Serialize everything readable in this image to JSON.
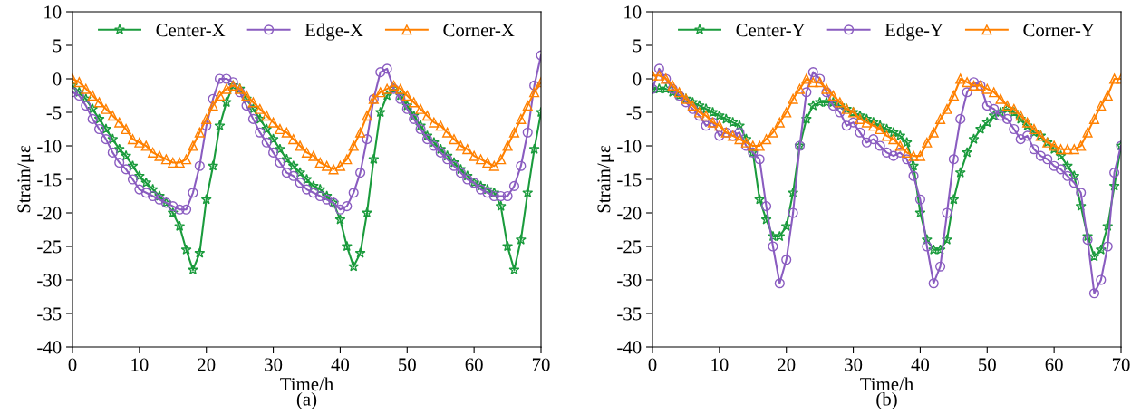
{
  "chart_data": [
    {
      "type": "line",
      "xlabel": "Time/h",
      "ylabel": "Strain/με",
      "annotations": [
        "(a)"
      ],
      "x": [
        0,
        1,
        2,
        3,
        4,
        5,
        6,
        7,
        8,
        9,
        10,
        11,
        12,
        13,
        14,
        15,
        16,
        17,
        18,
        19,
        20,
        21,
        22,
        23,
        24,
        25,
        26,
        27,
        28,
        29,
        30,
        31,
        32,
        33,
        34,
        35,
        36,
        37,
        38,
        39,
        40,
        41,
        42,
        43,
        44,
        45,
        46,
        47,
        48,
        49,
        50,
        51,
        52,
        53,
        54,
        55,
        56,
        57,
        58,
        59,
        60,
        61,
        62,
        63,
        64,
        65,
        66,
        67,
        68,
        69,
        70
      ],
      "xlim": [
        0,
        70
      ],
      "xticks": [
        0,
        10,
        20,
        30,
        40,
        50,
        60,
        70
      ],
      "ylim": [
        -40,
        10
      ],
      "yticks": [
        -40,
        -35,
        -30,
        -25,
        -20,
        -15,
        -10,
        -5,
        0,
        5,
        10
      ],
      "legend": "top",
      "grid": false,
      "line_style": "solid",
      "series": [
        {
          "name": "Center-X",
          "color": "#1a9b3c",
          "marker": "star",
          "values": [
            -1,
            -2,
            -3,
            -4.5,
            -6,
            -7.5,
            -9,
            -10.5,
            -11.5,
            -13,
            -14.5,
            -15.5,
            -16.5,
            -17.5,
            -18.5,
            -20,
            -22,
            -25.5,
            -28.5,
            -26,
            -18,
            -13,
            -7,
            -3.5,
            -1,
            -1.5,
            -3,
            -4.5,
            -6,
            -7.5,
            -9,
            -10.5,
            -12,
            -13,
            -14,
            -15,
            -16,
            -16.5,
            -17.5,
            -18.5,
            -21,
            -25,
            -28,
            -26,
            -20,
            -12,
            -5,
            -2.5,
            -1.5,
            -2.5,
            -4,
            -5.5,
            -7,
            -8.5,
            -9.5,
            -10.5,
            -11.5,
            -12.5,
            -13.5,
            -14.5,
            -15.5,
            -16,
            -16.5,
            -17,
            -19,
            -25,
            -28.5,
            -24,
            -17,
            -10.5,
            -5
          ]
        },
        {
          "name": "Edge-X",
          "color": "#8a5cc0",
          "marker": "circle",
          "values": [
            -2,
            -2.5,
            -4,
            -6,
            -7.5,
            -9,
            -11,
            -12.5,
            -13.5,
            -15,
            -16.5,
            -17,
            -17.5,
            -18,
            -18.5,
            -19,
            -19.5,
            -19.5,
            -17,
            -13,
            -7,
            -3,
            0,
            0,
            -0.5,
            -2,
            -4,
            -6,
            -8,
            -9.5,
            -11,
            -12.5,
            -14,
            -14.5,
            -15.5,
            -16.5,
            -17,
            -17.5,
            -18,
            -18.5,
            -19.5,
            -19,
            -17,
            -14,
            -9,
            -3,
            1,
            1.5,
            -1.5,
            -3,
            -4.5,
            -6,
            -7.5,
            -9,
            -10,
            -11,
            -12,
            -13,
            -14,
            -15,
            -15.5,
            -16.5,
            -17,
            -17.5,
            -17.5,
            -17.5,
            -16,
            -13,
            -8,
            -1,
            3.5
          ]
        },
        {
          "name": "Corner-X",
          "color": "#ff8000",
          "marker": "triangle",
          "values": [
            0,
            -0.5,
            -1.5,
            -2.5,
            -3.5,
            -4.5,
            -5.5,
            -6.5,
            -7.5,
            -9,
            -9.5,
            -10,
            -11,
            -11.5,
            -12,
            -12.5,
            -12.5,
            -12,
            -10,
            -8,
            -6,
            -4,
            -2.5,
            -1.5,
            -1,
            -1.5,
            -2.5,
            -3.5,
            -4.5,
            -5.5,
            -6.5,
            -7.5,
            -8,
            -9,
            -10,
            -11,
            -11.5,
            -12.5,
            -13,
            -13.5,
            -13,
            -12,
            -10,
            -8,
            -5.5,
            -3,
            -2,
            -1.5,
            -1,
            -1.5,
            -2.5,
            -3.5,
            -4.5,
            -5.5,
            -6.5,
            -7,
            -8,
            -9,
            -10,
            -10.5,
            -11.5,
            -12,
            -12.5,
            -13,
            -12,
            -10,
            -8,
            -6,
            -4,
            -2,
            -0.5
          ]
        }
      ]
    },
    {
      "type": "line",
      "xlabel": "Time/h",
      "ylabel": "Strain/με",
      "annotations": [
        "(b)"
      ],
      "x": [
        0,
        1,
        2,
        3,
        4,
        5,
        6,
        7,
        8,
        9,
        10,
        11,
        12,
        13,
        14,
        15,
        16,
        17,
        18,
        19,
        20,
        21,
        22,
        23,
        24,
        25,
        26,
        27,
        28,
        29,
        30,
        31,
        32,
        33,
        34,
        35,
        36,
        37,
        38,
        39,
        40,
        41,
        42,
        43,
        44,
        45,
        46,
        47,
        48,
        49,
        50,
        51,
        52,
        53,
        54,
        55,
        56,
        57,
        58,
        59,
        60,
        61,
        62,
        63,
        64,
        65,
        66,
        67,
        68,
        69,
        70
      ],
      "xlim": [
        0,
        70
      ],
      "xticks": [
        0,
        10,
        20,
        30,
        40,
        50,
        60,
        70
      ],
      "ylim": [
        -40,
        10
      ],
      "yticks": [
        -40,
        -35,
        -30,
        -25,
        -20,
        -15,
        -10,
        -5,
        0,
        5,
        10
      ],
      "legend": "top",
      "grid": false,
      "line_style": "solid",
      "series": [
        {
          "name": "Center-Y",
          "color": "#1a9b3c",
          "marker": "star",
          "values": [
            -1.5,
            -1.5,
            -1.5,
            -2,
            -2.5,
            -3,
            -3.5,
            -4,
            -4.5,
            -5,
            -5.5,
            -6,
            -6.5,
            -7,
            -9,
            -11,
            -18,
            -21,
            -23.5,
            -23.5,
            -22,
            -17,
            -10,
            -6,
            -4,
            -3.5,
            -3.5,
            -3.5,
            -4,
            -4.5,
            -5,
            -5.5,
            -6,
            -6.5,
            -7,
            -7.5,
            -8,
            -8.5,
            -9.5,
            -13,
            -20,
            -24,
            -25.5,
            -25.5,
            -24,
            -18,
            -14,
            -11,
            -9,
            -7.5,
            -6.5,
            -5.5,
            -5,
            -4.5,
            -5,
            -6,
            -7,
            -8,
            -8.5,
            -9.5,
            -10.5,
            -11.5,
            -13,
            -14.5,
            -19,
            -23.5,
            -26.5,
            -25.5,
            -22,
            -16,
            -10
          ]
        },
        {
          "name": "Edge-Y",
          "color": "#8a5cc0",
          "marker": "circle",
          "values": [
            -1.5,
            1.5,
            0,
            -1.5,
            -2.5,
            -3.5,
            -4.5,
            -5.5,
            -7,
            -6.5,
            -8.5,
            -8,
            -8.5,
            -8,
            -10,
            -11,
            -12,
            -19,
            -25,
            -30.5,
            -27,
            -20,
            -10,
            -2,
            1,
            0,
            -2,
            -4,
            -5,
            -7,
            -6.5,
            -8,
            -9.5,
            -9,
            -10,
            -11,
            -11.5,
            -11,
            -12,
            -14.5,
            -18,
            -25,
            -30.5,
            -28,
            -20,
            -12,
            -6,
            -2,
            -0.5,
            -1,
            -4,
            -4.5,
            -5.5,
            -6,
            -7.5,
            -9,
            -8.5,
            -10.5,
            -11.5,
            -12,
            -13,
            -13.5,
            -14.5,
            -15.5,
            -17,
            -24,
            -32,
            -30,
            -25,
            -14,
            -10
          ]
        },
        {
          "name": "Corner-Y",
          "color": "#ff8000",
          "marker": "triangle",
          "values": [
            0.5,
            0.5,
            0,
            -1,
            -2,
            -3,
            -4,
            -5,
            -5.5,
            -6.5,
            -7,
            -8,
            -8.5,
            -9,
            -9.5,
            -10,
            -10,
            -9,
            -8,
            -6.5,
            -5,
            -3,
            -1.5,
            0,
            -0.5,
            -0.5,
            -1.5,
            -2.5,
            -3.5,
            -4.5,
            -5,
            -6,
            -6.5,
            -7,
            -7.5,
            -8.5,
            -9,
            -10,
            -11,
            -11.5,
            -11.5,
            -9.5,
            -8,
            -6,
            -4.5,
            -2.5,
            0,
            -0.5,
            -1,
            -1,
            -1.5,
            -2,
            -3,
            -4,
            -4.5,
            -5.5,
            -6.5,
            -7.5,
            -8.5,
            -9.5,
            -10,
            -10.5,
            -10.5,
            -10.5,
            -10,
            -8,
            -6,
            -4,
            -2.5,
            0,
            0
          ]
        }
      ]
    }
  ]
}
